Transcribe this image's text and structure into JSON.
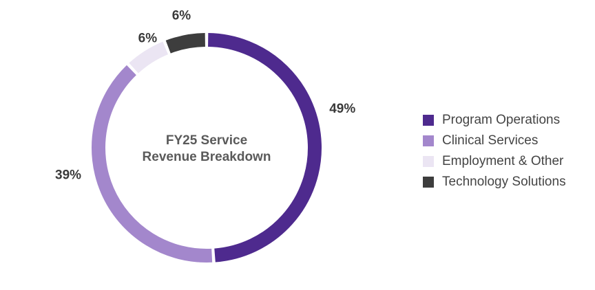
{
  "chart_data": {
    "type": "pie",
    "variant": "donut",
    "title": "FY25 Service Revenue Breakdown",
    "title_lines": [
      "FY25 Service",
      "Revenue Breakdown"
    ],
    "categories": [
      "Program Operations",
      "Clinical Services",
      "Employment & Other",
      "Technology Solutions"
    ],
    "values": [
      49,
      39,
      6,
      6
    ],
    "data_labels": [
      "49%",
      "39%",
      "6%",
      "6%"
    ],
    "colors": [
      "#4e2a8e",
      "#a387cc",
      "#ebe5f3",
      "#3d3d3d"
    ],
    "legend_position": "right"
  }
}
